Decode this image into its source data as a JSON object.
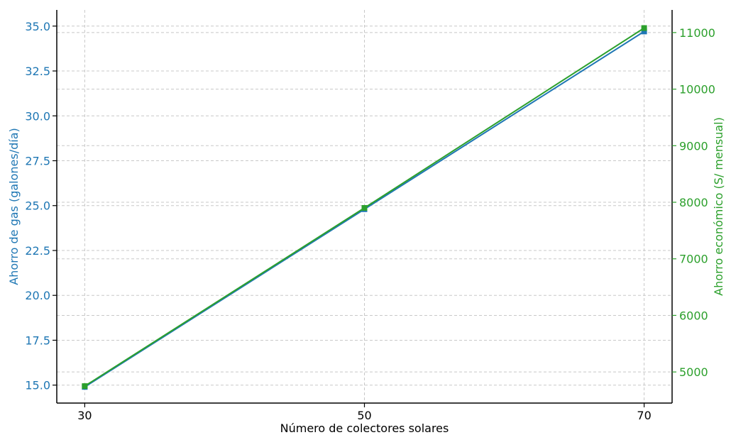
{
  "chart_data": {
    "type": "line",
    "title": "",
    "xlabel": "Número de colectores solares",
    "ylabel_left": "Ahorro de gas (galones/día)",
    "ylabel_right": "Ahorro económico (S/ mensual)",
    "x": [
      30,
      50,
      70
    ],
    "xlim": [
      28,
      72
    ],
    "ylim_left": [
      14.0,
      35.9
    ],
    "ylim_right": [
      4450,
      11400
    ],
    "x_ticks": [
      "30",
      "50",
      "70"
    ],
    "y_left_ticks": [
      "15.0",
      "17.5",
      "20.0",
      "22.5",
      "25.0",
      "27.5",
      "30.0",
      "32.5",
      "35.0"
    ],
    "y_right_ticks": [
      "5000",
      "6000",
      "7000",
      "8000",
      "9000",
      "10000",
      "11000"
    ],
    "grid": true,
    "series": [
      {
        "axis": "left",
        "values": [
          14.9,
          24.8,
          34.7
        ],
        "color": "#1f77b4"
      },
      {
        "axis": "right",
        "values": [
          4750,
          7900,
          11080
        ],
        "color": "#2ca02c"
      }
    ],
    "colors": {
      "left_axis": "#1f77b4",
      "right_axis": "#2ca02c",
      "grid": "#c8c8c8",
      "spine": "#000000"
    }
  }
}
